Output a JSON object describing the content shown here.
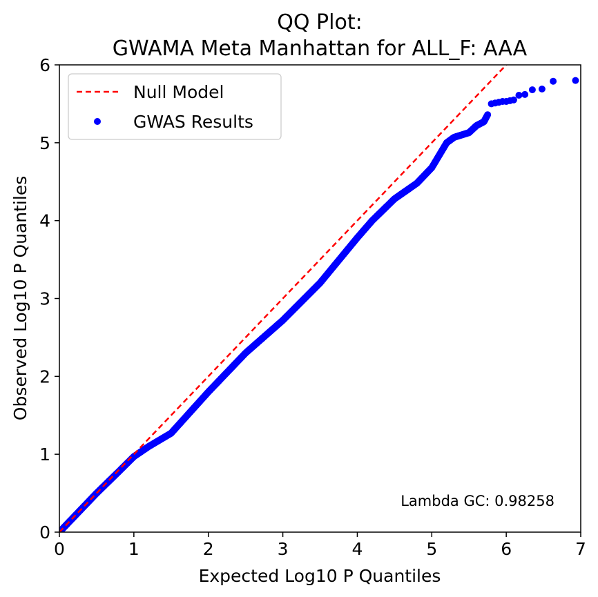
{
  "chart_data": {
    "type": "scatter",
    "title_line1": "QQ Plot:",
    "title_line2": "GWAMA Meta Manhattan for ALL_F: AAA",
    "xlabel": "Expected Log10 P Quantiles",
    "ylabel": "Observed Log10 P Quantiles",
    "xlim": [
      0,
      7
    ],
    "ylim": [
      0,
      6
    ],
    "xticks": [
      0,
      1,
      2,
      3,
      4,
      5,
      6,
      7
    ],
    "yticks": [
      0,
      1,
      2,
      3,
      4,
      5,
      6
    ],
    "grid": false,
    "legend_position": "top-left",
    "annotation": "Lambda GC: 0.98258",
    "colors": {
      "null_line": "#ff0000",
      "points": "#0000ff"
    },
    "series": [
      {
        "name": "Null Model",
        "kind": "dashed-line",
        "x": [
          0,
          7
        ],
        "y": [
          0,
          7
        ]
      },
      {
        "name": "GWAS Results",
        "kind": "scatter",
        "curve": {
          "x": [
            0.0,
            0.2,
            0.5,
            0.8,
            1.0,
            1.2,
            1.5,
            2.0,
            2.5,
            3.0,
            3.5,
            4.0,
            4.2,
            4.5,
            4.8,
            5.0,
            5.2,
            5.3,
            5.5,
            5.6,
            5.7,
            5.75
          ],
          "y": [
            0.0,
            0.2,
            0.5,
            0.78,
            0.97,
            1.1,
            1.27,
            1.8,
            2.3,
            2.72,
            3.2,
            3.78,
            4.0,
            4.28,
            4.48,
            4.68,
            5.0,
            5.07,
            5.13,
            5.22,
            5.27,
            5.36
          ]
        },
        "tail_points": {
          "x": [
            5.8,
            5.85,
            5.9,
            5.95,
            6.0,
            6.05,
            6.1,
            6.17,
            6.25,
            6.35,
            6.48,
            6.63,
            6.93
          ],
          "y": [
            5.5,
            5.51,
            5.52,
            5.53,
            5.53,
            5.54,
            5.55,
            5.61,
            5.62,
            5.68,
            5.69,
            5.79,
            5.8
          ]
        }
      }
    ]
  }
}
